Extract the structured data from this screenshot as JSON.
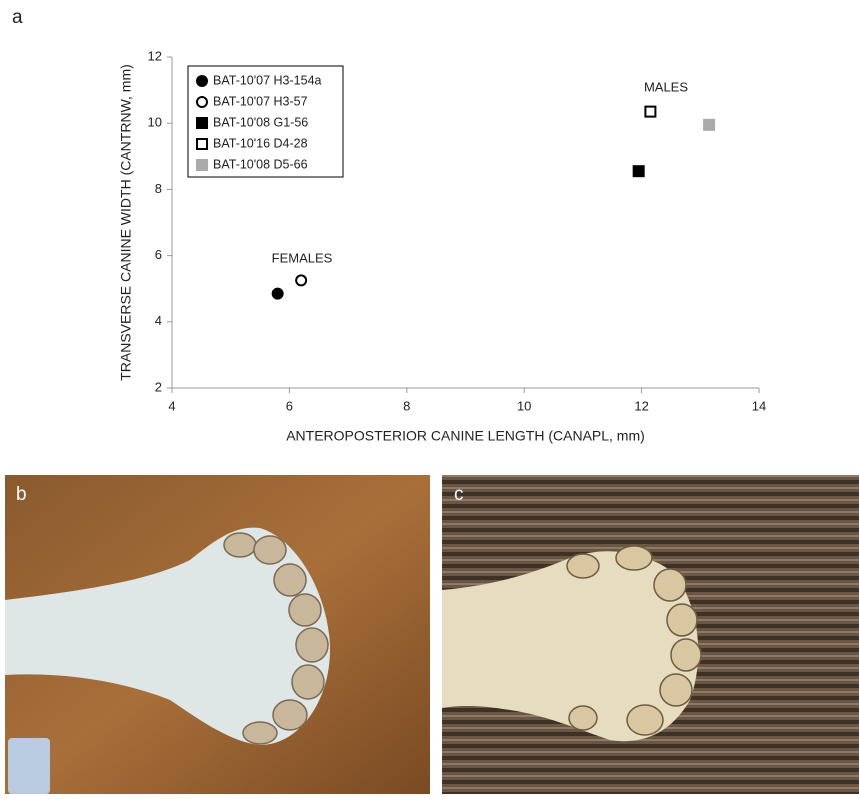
{
  "panel_labels": [
    "a",
    "b",
    "c"
  ],
  "chart_data": {
    "type": "scatter",
    "x_label": "ANTEROPOSTERIOR CANINE LENGTH (CANAPL, mm)",
    "y_label": "TRANSVERSE CANINE WIDTH (CANTRNW, mm)",
    "xlim": [
      4,
      14
    ],
    "xticks": [
      4,
      6,
      8,
      10,
      12,
      14
    ],
    "ylim": [
      2,
      12
    ],
    "yticks": [
      2,
      4,
      6,
      8,
      10,
      12
    ],
    "legend": "upper left",
    "annotations": [
      "FEMALES",
      "MALES"
    ],
    "series": [
      {
        "name": "BAT-10'07 H3-154a",
        "marker": "circle",
        "color": "#000000",
        "filled": true,
        "x": [
          5.8
        ],
        "values": [
          4.85
        ]
      },
      {
        "name": "BAT-10'07 H3-57",
        "marker": "circle",
        "color": "#000000",
        "filled": false,
        "x": [
          6.2
        ],
        "values": [
          5.25
        ]
      },
      {
        "name": "BAT-10'08 G1-56",
        "marker": "square",
        "color": "#000000",
        "filled": true,
        "x": [
          11.95
        ],
        "values": [
          8.55
        ]
      },
      {
        "name": "BAT-10'16 D4-28",
        "marker": "square",
        "color": "#000000",
        "filled": false,
        "x": [
          12.15
        ],
        "values": [
          10.35
        ]
      },
      {
        "name": "BAT-10'08 D5-66",
        "marker": "square",
        "color": "#aaaaaa",
        "filled": true,
        "x": [
          13.15
        ],
        "values": [
          9.95
        ]
      }
    ]
  }
}
